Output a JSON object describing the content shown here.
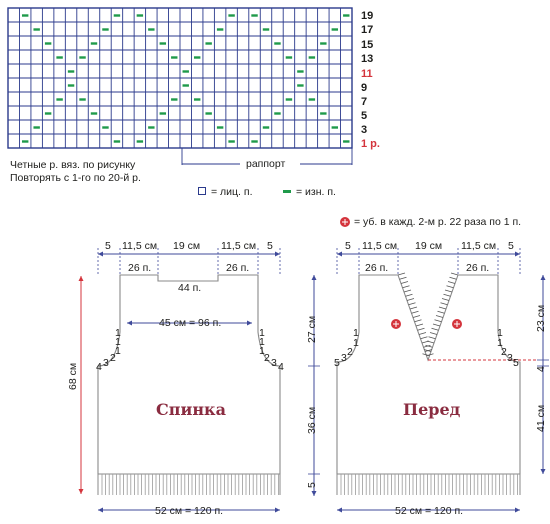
{
  "chart": {
    "row_numbers": [
      "19",
      "17",
      "15",
      "13",
      "11",
      "9",
      "7",
      "5",
      "3",
      "1 р."
    ],
    "highlight_rows": [
      "11",
      "1 р."
    ],
    "rapport_label": "раппорт",
    "note_line1": "Четные р. вяз. по рисунку",
    "note_line2": "Повторять с 1-го по 20-й р."
  },
  "legend": {
    "knit_label": "= лиц. п.",
    "purl_label": "= изн. п.",
    "decrease_symbol": "*",
    "decrease_label": "= уб. в кажд. 2-м р. 22 раза по 1 п."
  },
  "back": {
    "top_dims": [
      "5",
      "11,5 см",
      "19 см",
      "11,5 см",
      "5"
    ],
    "shoulder_left": "26 п.",
    "shoulder_right": "26 п.",
    "neck": "44 п.",
    "chest": "45 см = 96 п.",
    "armhole_left": [
      "1",
      "1",
      "1",
      "2",
      "3",
      "4"
    ],
    "armhole_right": [
      "1",
      "1",
      "1",
      "2",
      "3",
      "4"
    ],
    "title": "Спинка",
    "height_total": "68 см",
    "bottom": "52 см = 120 п."
  },
  "front": {
    "top_dims": [
      "5",
      "11,5 см",
      "19 см",
      "11,5 см",
      "5"
    ],
    "shoulder_left": "26 п.",
    "shoulder_right": "26 п.",
    "armhole_left": [
      "1",
      "1",
      "2",
      "3",
      "5"
    ],
    "armhole_right": [
      "1",
      "1",
      "2",
      "3",
      "5"
    ],
    "title": "Перед",
    "bottom": "52 см = 120 п."
  },
  "side_dims": {
    "mid_upper": "27 см",
    "mid_lower": "36 см",
    "mid_rib": "5",
    "right_upper": "23 см",
    "right_small": "4",
    "right_lower": "41 см"
  },
  "colors": {
    "grid_line": "#2b3a8c",
    "purl_mark": "#1f9a4a",
    "dimension": "#3f4a9a",
    "red": "#d4343c",
    "title": "#8a2c40"
  }
}
